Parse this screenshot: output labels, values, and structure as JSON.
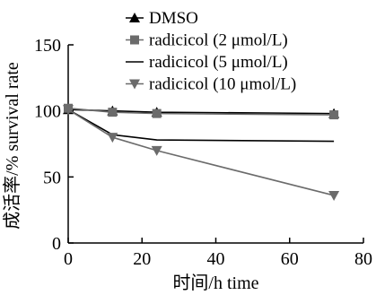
{
  "chart_data": {
    "type": "line",
    "xlabel": "时间/h time",
    "ylabel": "成活率/% survival rate",
    "xlim": [
      0,
      80
    ],
    "ylim": [
      0,
      150
    ],
    "xticks": [
      0,
      20,
      40,
      60,
      80
    ],
    "yticks": [
      0,
      50,
      100,
      150
    ],
    "grid": false,
    "legend_position": "top-right",
    "series": [
      {
        "name": "DMSO",
        "marker": "triangle-up",
        "color": "#000000",
        "x": [
          0,
          12,
          24,
          72
        ],
        "y": [
          101,
          100,
          99,
          98
        ]
      },
      {
        "name": "radicicol (2 μmol/L)",
        "marker": "square",
        "color": "#6b6b6b",
        "x": [
          0,
          12,
          24,
          72
        ],
        "y": [
          102,
          99,
          98,
          97
        ]
      },
      {
        "name": "radicicol (5 μmol/L)",
        "marker": "none",
        "color": "#000000",
        "x": [
          0,
          12,
          24,
          72
        ],
        "y": [
          101,
          82,
          78,
          77
        ]
      },
      {
        "name": "radicicol (10 μmol/L)",
        "marker": "triangle-down",
        "color": "#6b6b6b",
        "x": [
          0,
          12,
          24,
          72
        ],
        "y": [
          101,
          80,
          70,
          36
        ]
      }
    ]
  }
}
